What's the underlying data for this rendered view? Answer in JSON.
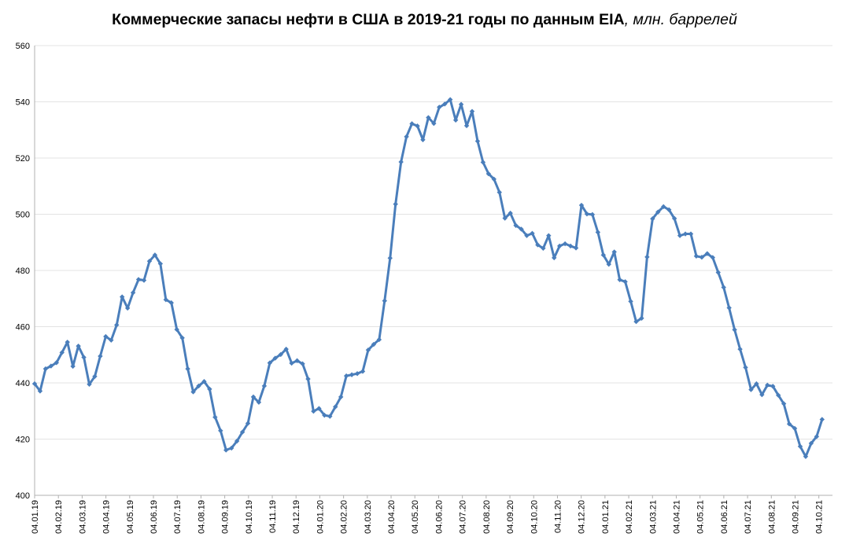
{
  "chart_data": {
    "type": "line",
    "title": "Коммерческие запасы нефти в США в 2019-21 годы по данным EIA",
    "title_unit": ", млн. баррелей",
    "xlabel": "",
    "ylabel": "",
    "ylim": [
      400,
      560
    ],
    "y_ticks": [
      "400",
      "420",
      "440",
      "460",
      "480",
      "500",
      "520",
      "540",
      "560"
    ],
    "x_tick_labels": [
      "04.01.19",
      "04.02.19",
      "04.03.19",
      "04.04.19",
      "04.05.19",
      "04.06.19",
      "04.07.19",
      "04.08.19",
      "04.09.19",
      "04.10.19",
      "04.11.19",
      "04.12.19",
      "04.01.20",
      "04.02.20",
      "04.03.20",
      "04.04.20",
      "04.05.20",
      "04.06.20",
      "04.07.20",
      "04.08.20",
      "04.09.20",
      "04.10.20",
      "04.11.20",
      "04.12.20",
      "04.01.21",
      "04.02.21",
      "04.03.21",
      "04.04.21",
      "04.05.21",
      "04.06.21",
      "04.07.21",
      "04.08.21",
      "04.09.21",
      "04.10.21"
    ],
    "grid": "horizontal",
    "legend": "none",
    "series_color": "#4a7ebb",
    "series": [
      {
        "values": [
          439.7,
          437.1,
          445.0,
          446.0,
          447.2,
          450.8,
          454.5,
          445.9,
          453.1,
          449.1,
          439.5,
          442.3,
          449.5,
          456.5,
          455.2,
          460.6,
          470.6,
          466.6,
          472.1,
          476.8,
          476.5,
          483.3,
          485.5,
          482.4,
          469.6,
          468.5,
          459.0,
          456.0,
          445.0,
          436.8,
          438.9,
          440.5,
          437.8,
          427.8,
          423.0,
          416.1,
          416.8,
          419.3,
          422.5,
          425.6,
          435.0,
          433.1,
          438.9,
          447.1,
          448.8,
          450.1,
          452.0,
          447.0,
          447.9,
          446.8,
          441.4,
          429.9,
          430.9,
          428.5,
          428.1,
          431.5,
          435.0,
          442.5,
          442.9,
          443.3,
          444.1,
          451.7,
          453.7,
          455.4,
          469.2,
          484.4,
          503.6,
          518.6,
          527.6,
          532.2,
          531.4,
          526.5,
          534.4,
          532.3,
          538.1,
          539.2,
          540.8,
          533.5,
          539.1,
          531.5,
          536.6,
          526.0,
          518.5,
          514.4,
          512.5,
          507.8,
          498.6,
          500.4,
          496.0,
          494.7,
          492.4,
          493.2,
          489.1,
          487.9,
          492.4,
          484.5,
          488.7,
          489.5,
          488.7,
          488.0,
          503.2,
          500.1,
          499.9,
          493.6,
          485.5,
          482.2,
          486.6,
          476.7,
          476.0,
          469.0,
          461.8,
          463.0,
          484.8,
          498.4,
          500.8,
          502.7,
          501.6,
          498.5,
          492.4,
          493.0,
          493.0,
          485.1,
          484.7,
          486.0,
          484.6,
          479.3,
          474.0,
          466.7,
          458.9,
          452.0,
          445.5,
          437.6,
          439.7,
          435.8,
          439.2,
          438.8,
          435.6,
          432.6,
          425.4,
          423.8,
          417.4,
          413.8,
          418.5,
          420.9,
          427.0
        ]
      }
    ]
  }
}
